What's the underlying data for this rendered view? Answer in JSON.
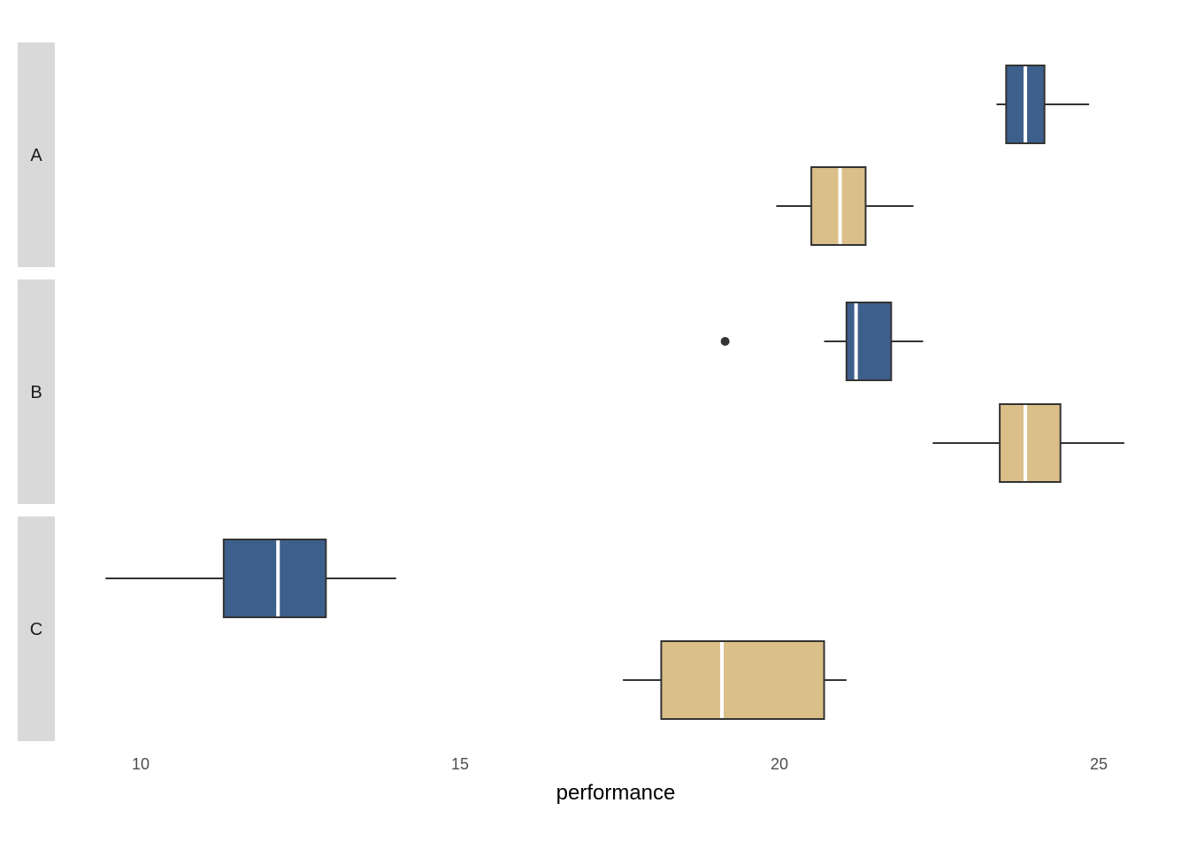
{
  "chart_data": {
    "type": "boxplot",
    "orientation": "horizontal",
    "title": "",
    "xlabel": "performance",
    "ylabel": "",
    "xlim": [
      8.8,
      25.6
    ],
    "x_ticks": [
      10,
      15,
      20,
      25
    ],
    "x_tick_labels": [
      "10",
      "15",
      "20",
      "25"
    ],
    "grid": false,
    "legend": "none",
    "colors": {
      "blue": "#3d5f8c",
      "tan": "#dbbf89",
      "strip": "#d9d9d9",
      "outline": "#333333",
      "median": "#ffffff"
    },
    "facets": [
      {
        "label": "A",
        "boxes": [
          {
            "color": "blue",
            "whisker_low": 23.4,
            "q1": 23.55,
            "median": 23.85,
            "q3": 24.15,
            "whisker_high": 24.85,
            "outliers": []
          },
          {
            "color": "tan",
            "whisker_low": 19.95,
            "q1": 20.5,
            "median": 20.95,
            "q3": 21.35,
            "whisker_high": 22.1,
            "outliers": []
          }
        ]
      },
      {
        "label": "B",
        "boxes": [
          {
            "color": "blue",
            "whisker_low": 20.7,
            "q1": 21.05,
            "median": 21.2,
            "q3": 21.75,
            "whisker_high": 22.25,
            "outliers": [
              19.15
            ]
          },
          {
            "color": "tan",
            "whisker_low": 22.4,
            "q1": 23.45,
            "median": 23.85,
            "q3": 24.4,
            "whisker_high": 25.4,
            "outliers": []
          }
        ]
      },
      {
        "label": "C",
        "boxes": [
          {
            "color": "blue",
            "whisker_low": 9.45,
            "q1": 11.3,
            "median": 12.15,
            "q3": 12.9,
            "whisker_high": 14.0,
            "outliers": []
          },
          {
            "color": "tan",
            "whisker_low": 17.55,
            "q1": 18.15,
            "median": 19.1,
            "q3": 20.7,
            "whisker_high": 21.05,
            "outliers": []
          }
        ]
      }
    ]
  }
}
